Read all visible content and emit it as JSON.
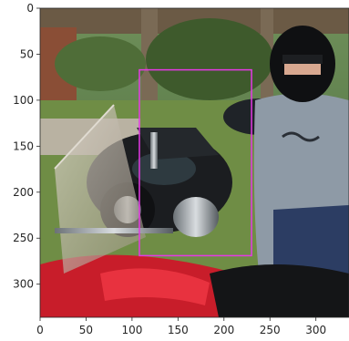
{
  "figure": {
    "image_description": "Outdoor scene under a carport: a black chrome cruiser motorcycle parked on grass in the center, a red motorcycle with a tall windshield in the foreground, and a person wearing a black full-face helmet and a grey t-shirt standing at the right; trees in the background.",
    "x_axis": {
      "ticks": [
        "0",
        "50",
        "100",
        "150",
        "200",
        "250",
        "300"
      ],
      "tick_values": [
        0,
        50,
        100,
        150,
        200,
        250,
        300
      ],
      "range": [
        0,
        336
      ]
    },
    "y_axis": {
      "ticks": [
        "0",
        "50",
        "100",
        "150",
        "200",
        "250",
        "300"
      ],
      "tick_values": [
        0,
        50,
        100,
        150,
        200,
        250,
        300
      ],
      "range": [
        0,
        336
      ]
    },
    "bounding_box": {
      "color": "#e639e6",
      "x_min": 108,
      "y_min": 67,
      "x_max": 230,
      "y_max": 269
    }
  }
}
